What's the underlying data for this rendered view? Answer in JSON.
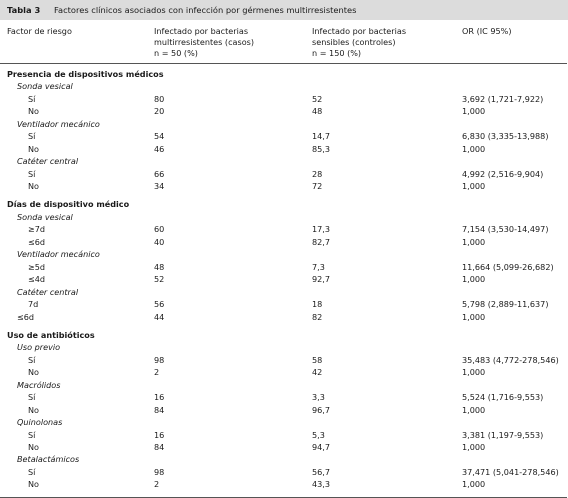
{
  "caption": {
    "number": "Tabla 3",
    "title": "Factores clínicos asociados con infección por gérmenes multirresistentes"
  },
  "columns": [
    {
      "line1": "Factor de riesgo",
      "line2": "",
      "line3": ""
    },
    {
      "line1": "Infectado por bacterias",
      "line2": "multirresistentes (casos)",
      "line3": "n = 50 (%)"
    },
    {
      "line1": "Infectado por bacterias",
      "line2": "sensibles (controles)",
      "line3": "n = 150 (%)"
    },
    {
      "line1": "OR (IC 95%)",
      "line2": "",
      "line3": ""
    }
  ],
  "rows": [
    {
      "kind": "section",
      "label": "Presencia de dispositivos médicos"
    },
    {
      "kind": "sub",
      "label": "Sonda vesical"
    },
    {
      "kind": "row",
      "label": "Sí",
      "casos": "80",
      "controles": "52",
      "or": "3,692 (1,721-7,922)"
    },
    {
      "kind": "row",
      "label": "No",
      "casos": "20",
      "controles": "48",
      "or": "1,000"
    },
    {
      "kind": "sub",
      "label": "Ventilador mecánico"
    },
    {
      "kind": "row",
      "label": "Sí",
      "casos": "54",
      "controles": "14,7",
      "or": "6,830 (3,335-13,988)"
    },
    {
      "kind": "row",
      "label": "No",
      "casos": "46",
      "controles": "85,3",
      "or": "1,000"
    },
    {
      "kind": "sub",
      "label": "Catéter central"
    },
    {
      "kind": "row",
      "label": "Sí",
      "casos": "66",
      "controles": "28",
      "or": "4,992 (2,516-9,904)"
    },
    {
      "kind": "row",
      "label": "No",
      "casos": "34",
      "controles": "72",
      "or": "1,000"
    },
    {
      "kind": "section",
      "label": "Días de dispositivo médico"
    },
    {
      "kind": "sub",
      "label": "Sonda vesical"
    },
    {
      "kind": "row",
      "label": "≥7d",
      "casos": "60",
      "controles": "17,3",
      "or": "7,154 (3,530-14,497)"
    },
    {
      "kind": "row",
      "label": "≤6d",
      "casos": "40",
      "controles": "82,7",
      "or": "1,000"
    },
    {
      "kind": "sub",
      "label": "Ventilador mecánico"
    },
    {
      "kind": "row",
      "label": "≥5d",
      "casos": "48",
      "controles": "7,3",
      "or": "11,664 (5,099-26,682)"
    },
    {
      "kind": "row",
      "label": "≤4d",
      "casos": "52",
      "controles": "92,7",
      "or": "1,000"
    },
    {
      "kind": "sub",
      "label": "Catéter central"
    },
    {
      "kind": "row",
      "label": "7d",
      "casos": "56",
      "controles": "18",
      "or": "5,798 (2,889-11,637)"
    },
    {
      "kind": "row",
      "label": "≤6d",
      "casos": "44",
      "controles": "82",
      "or": "1,000",
      "indent": "less"
    },
    {
      "kind": "section",
      "label": "Uso de antibióticos"
    },
    {
      "kind": "sub",
      "label": "Uso previo"
    },
    {
      "kind": "row",
      "label": "Sí",
      "casos": "98",
      "controles": "58",
      "or": "35,483 (4,772-278,546)"
    },
    {
      "kind": "row",
      "label": "No",
      "casos": "2",
      "controles": "42",
      "or": "1,000"
    },
    {
      "kind": "sub",
      "label": "Macrólidos"
    },
    {
      "kind": "row",
      "label": "Sí",
      "casos": "16",
      "controles": "3,3",
      "or": "5,524 (1,716-9,553)"
    },
    {
      "kind": "row",
      "label": "No",
      "casos": "84",
      "controles": "96,7",
      "or": "1,000"
    },
    {
      "kind": "sub",
      "label": "Quinolonas"
    },
    {
      "kind": "row",
      "label": "Sí",
      "casos": "16",
      "controles": "5,3",
      "or": "3,381 (1,197-9,553)"
    },
    {
      "kind": "row",
      "label": "No",
      "casos": "84",
      "controles": "94,7",
      "or": "1,000"
    },
    {
      "kind": "sub",
      "label": "Betalactámicos"
    },
    {
      "kind": "row",
      "label": "Sí",
      "casos": "98",
      "controles": "56,7",
      "or": "37,471 (5,041-278,546)"
    },
    {
      "kind": "row",
      "label": "No",
      "casos": "2",
      "controles": "43,3",
      "or": "1,000"
    }
  ]
}
